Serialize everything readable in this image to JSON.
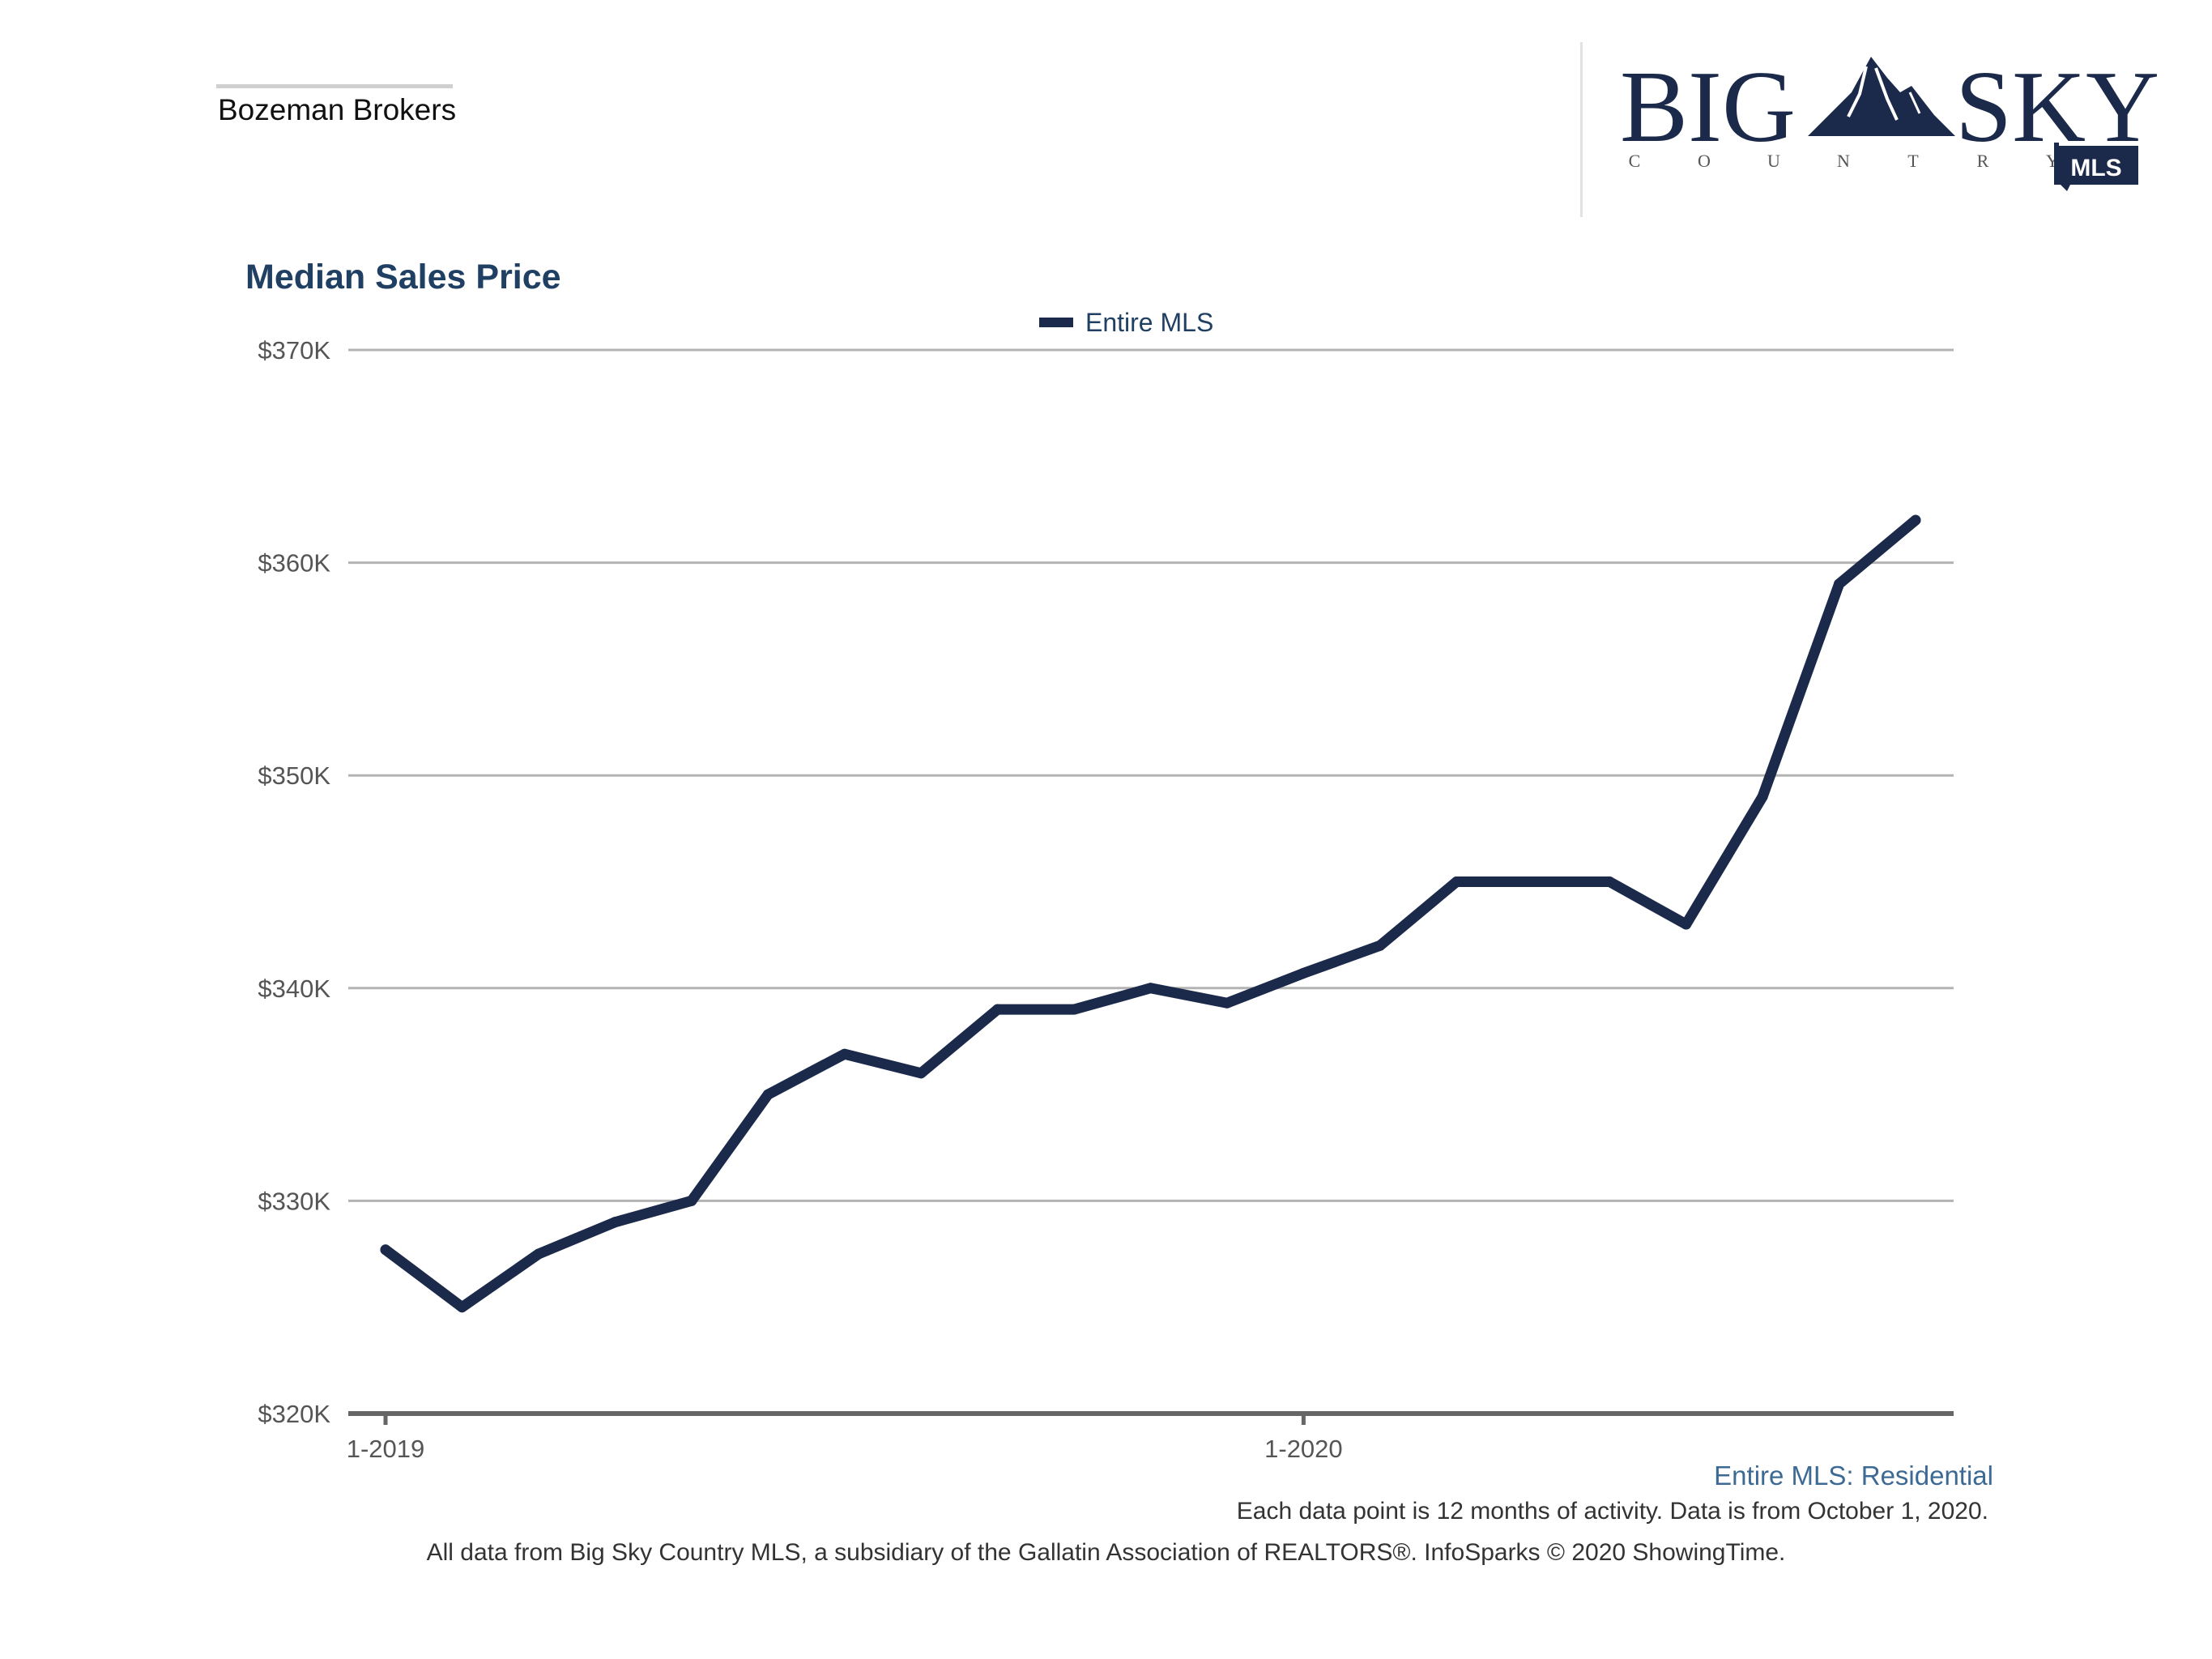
{
  "header": {
    "brand_name": "Bozeman Brokers",
    "logo": {
      "word_left": "BIG",
      "word_right": "SKY",
      "tagline_letters": [
        "C",
        "O",
        "U",
        "N",
        "T",
        "R",
        "Y"
      ],
      "badge": "MLS",
      "icon": "mountain-icon"
    }
  },
  "colors": {
    "series": "#1b2a4a",
    "title": "#1f3f63",
    "grid": "#b3b3b3",
    "axis": "#666666"
  },
  "chart_data": {
    "type": "line",
    "title": "Median Sales Price",
    "legend_position": "top-center",
    "grid": true,
    "x_tick_labels": [
      "1-2019",
      "1-2020"
    ],
    "y_tick_labels": [
      "$320K",
      "$330K",
      "$340K",
      "$350K",
      "$360K",
      "$370K"
    ],
    "ylim": [
      320000,
      370000
    ],
    "x": [
      "2019-01",
      "2019-02",
      "2019-03",
      "2019-04",
      "2019-05",
      "2019-06",
      "2019-07",
      "2019-08",
      "2019-09",
      "2019-10",
      "2019-11",
      "2019-12",
      "2020-01",
      "2020-02",
      "2020-03",
      "2020-04",
      "2020-05",
      "2020-06",
      "2020-07",
      "2020-08",
      "2020-09"
    ],
    "series": [
      {
        "name": "Entire MLS",
        "color": "#1b2a4a",
        "values": [
          327700,
          325000,
          327500,
          329000,
          330000,
          335000,
          336900,
          336000,
          339000,
          339000,
          340000,
          339300,
          340700,
          342000,
          345000,
          345000,
          345000,
          343000,
          349000,
          359000,
          362000
        ]
      }
    ]
  },
  "footer": {
    "subset_label": "Entire MLS: Residential",
    "note": "Each data point is 12 months of activity. Data is from October 1, 2020.",
    "source": "All data from Big Sky Country MLS, a subsidiary of the Gallatin Association of REALTORS®. InfoSparks © 2020 ShowingTime."
  }
}
